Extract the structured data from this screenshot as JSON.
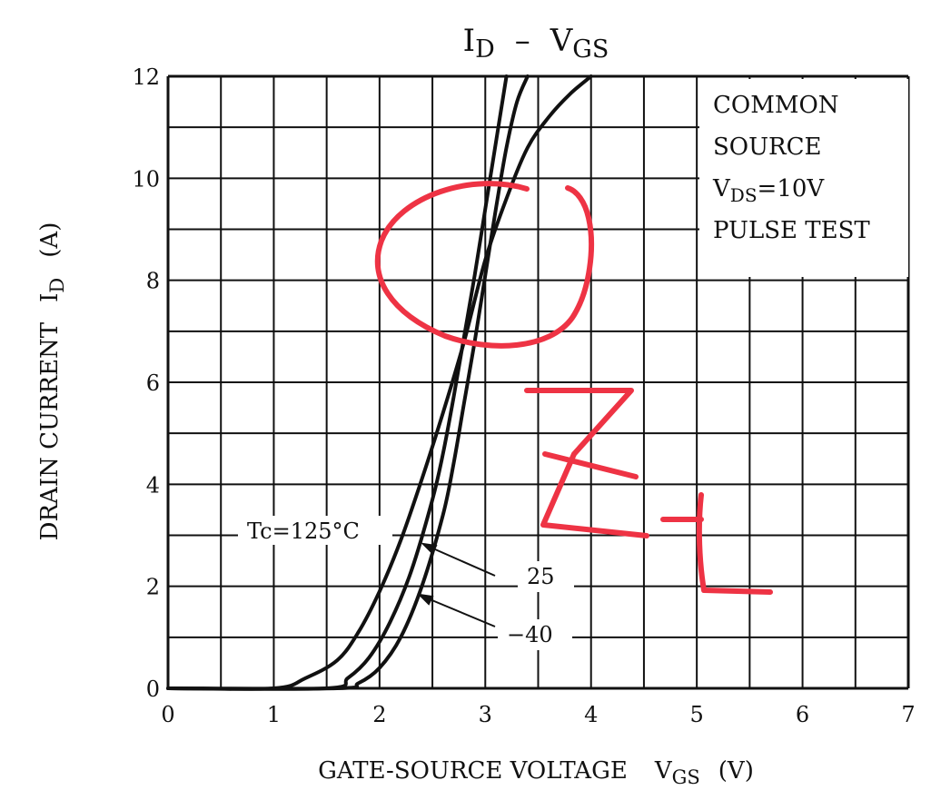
{
  "chart_data": {
    "type": "line",
    "title_main": "I",
    "title_sub": "D",
    "title_dash": "–",
    "title_main2": "V",
    "title_sub2": "GS",
    "xlabel_main": "GATE-SOURCE VOLTAGE",
    "xlabel_v": "V",
    "xlabel_sub": "GS",
    "xlabel_unit": "(V)",
    "ylabel_main": "DRAIN CURRENT",
    "ylabel_i": "I",
    "ylabel_sub": "D",
    "ylabel_unit": "(A)",
    "xlim": [
      0,
      7
    ],
    "ylim": [
      0,
      12
    ],
    "x_ticks": [
      "0",
      "1",
      "2",
      "3",
      "4",
      "5",
      "6",
      "7"
    ],
    "y_ticks": [
      "0",
      "2",
      "4",
      "6",
      "8",
      "10",
      "12"
    ],
    "grid": true,
    "legend_box": {
      "line1": "COMMON",
      "line2": "SOURCE",
      "line3_a": "V",
      "line3_sub": "DS",
      "line3_b": "=10V",
      "line4": "PULSE TEST"
    },
    "series": [
      {
        "name": "Tc=125°C",
        "x": [
          0.0,
          1.0,
          1.3,
          1.6,
          1.8,
          2.0,
          2.2,
          2.4,
          2.6,
          2.8,
          3.0,
          3.2,
          3.4,
          3.6,
          3.8,
          4.0
        ],
        "y": [
          0.0,
          0.0,
          0.2,
          0.55,
          1.1,
          1.9,
          2.9,
          4.1,
          5.4,
          6.8,
          8.4,
          9.6,
          10.6,
          11.2,
          11.65,
          12.0
        ]
      },
      {
        "name": "25",
        "x": [
          0.0,
          1.5,
          1.7,
          1.9,
          2.1,
          2.3,
          2.5,
          2.6,
          2.7,
          2.8,
          2.9,
          3.0,
          3.1,
          3.2
        ],
        "y": [
          0.0,
          0.0,
          0.2,
          0.6,
          1.3,
          2.3,
          3.7,
          4.6,
          5.7,
          6.9,
          8.1,
          9.4,
          10.7,
          12.0
        ]
      },
      {
        "name": "-40",
        "x": [
          0.0,
          1.6,
          1.8,
          2.0,
          2.2,
          2.4,
          2.6,
          2.7,
          2.8,
          2.9,
          3.0,
          3.1,
          3.2,
          3.3,
          3.4
        ],
        "y": [
          0.0,
          0.0,
          0.1,
          0.4,
          1.0,
          2.0,
          3.4,
          4.4,
          5.6,
          6.8,
          8.1,
          9.4,
          10.6,
          11.5,
          12.0
        ]
      }
    ],
    "curve_labels": {
      "tc": "Tc=125°C",
      "t25": "25",
      "tm40": "−40"
    },
    "annotation_color": "#ee3344",
    "handwriting_note": "Z_f"
  }
}
